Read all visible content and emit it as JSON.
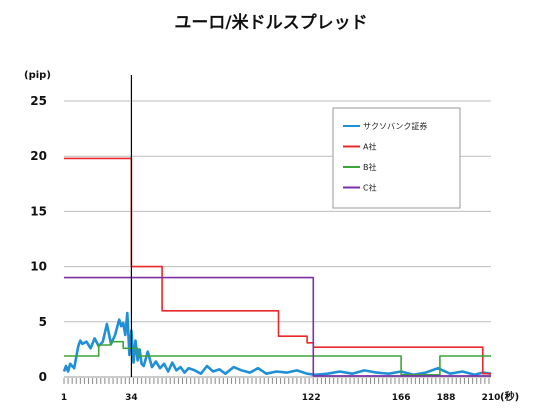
{
  "chart_data": {
    "type": "line",
    "title": "ユーロ/米ドルスプレッド",
    "ylabel": "(pip)",
    "xlabel": "(秒)",
    "xlim": [
      1,
      210
    ],
    "ylim": [
      0,
      25
    ],
    "y_ticks": [
      0,
      5,
      10,
      15,
      20,
      25
    ],
    "x_ticks": [
      1,
      34,
      122,
      166,
      188,
      210
    ],
    "grid": true,
    "legend_position": "top-right",
    "marker_line_x": 34,
    "series": [
      {
        "name": "サクソバンク証券",
        "color": "#1f8fd6",
        "x": [
          1,
          2,
          3,
          4,
          6,
          8,
          9,
          10,
          12,
          14,
          16,
          18,
          20,
          22,
          24,
          26,
          27,
          28,
          29,
          30,
          31,
          32,
          33,
          34,
          35,
          36,
          37,
          38,
          39,
          40,
          42,
          44,
          46,
          48,
          50,
          52,
          54,
          56,
          58,
          60,
          62,
          65,
          68,
          71,
          74,
          77,
          80,
          84,
          88,
          92,
          96,
          100,
          105,
          110,
          115,
          120,
          124,
          130,
          136,
          142,
          148,
          154,
          160,
          166,
          172,
          178,
          184,
          190,
          196,
          202,
          206,
          210
        ],
        "y": [
          0.5,
          1.0,
          0.5,
          1.2,
          0.8,
          2.8,
          3.3,
          3.0,
          3.2,
          2.6,
          3.5,
          2.8,
          3.2,
          4.8,
          3.0,
          3.8,
          4.5,
          5.2,
          4.6,
          4.9,
          3.8,
          5.8,
          2.0,
          4.2,
          1.3,
          3.3,
          1.5,
          2.5,
          1.2,
          1.0,
          2.3,
          0.9,
          1.4,
          0.8,
          1.2,
          0.5,
          1.3,
          0.6,
          0.9,
          0.4,
          0.8,
          0.6,
          0.3,
          1.0,
          0.5,
          0.7,
          0.3,
          0.9,
          0.6,
          0.4,
          0.8,
          0.3,
          0.5,
          0.4,
          0.6,
          0.3,
          0.2,
          0.3,
          0.5,
          0.3,
          0.6,
          0.4,
          0.3,
          0.5,
          0.2,
          0.4,
          0.8,
          0.3,
          0.5,
          0.2,
          0.4,
          0.3
        ]
      },
      {
        "name": "A社",
        "color": "#e8282b",
        "x": [
          1,
          34,
          34,
          49,
          49,
          106,
          106,
          120,
          120,
          123,
          123,
          206,
          206,
          210
        ],
        "y": [
          19.8,
          19.8,
          10.0,
          10.0,
          6.0,
          6.0,
          3.7,
          3.7,
          3.1,
          3.1,
          2.7,
          2.7,
          0.3,
          0.3
        ]
      },
      {
        "name": "B社",
        "color": "#3ea33a",
        "x": [
          1,
          18,
          18,
          24,
          24,
          30,
          30,
          37,
          37,
          166,
          166,
          185,
          185,
          210
        ],
        "y": [
          1.9,
          1.9,
          2.9,
          2.9,
          3.2,
          3.2,
          2.6,
          2.6,
          1.9,
          1.9,
          0.2,
          0.2,
          1.9,
          1.9
        ]
      },
      {
        "name": "C社",
        "color": "#7b2fa8",
        "x": [
          1,
          123,
          123,
          210
        ],
        "y": [
          9.0,
          9.0,
          0.1,
          0.1
        ]
      }
    ]
  }
}
